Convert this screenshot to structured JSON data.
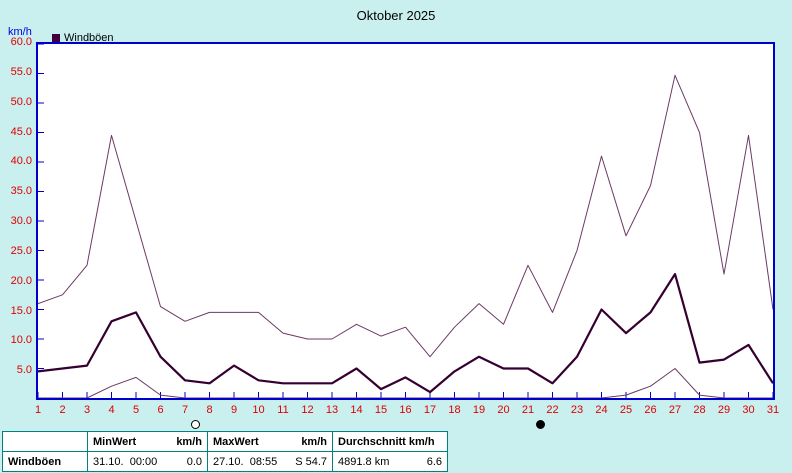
{
  "header": {
    "title": "Oktober 2025",
    "axis_unit_label": "km/h"
  },
  "legend": {
    "label": "Windböen",
    "swatch_color": "#400040"
  },
  "colors": {
    "page_background": "#c9efef",
    "plot_background": "#ffffff",
    "plot_border": "#0000cc",
    "tick_label_color": "#e00000",
    "table_border": "#008080",
    "series_max": "#6b3a64",
    "series_avg": "#350030"
  },
  "chart_data": {
    "type": "line",
    "title": "Oktober 2025",
    "ylabel": "km/h",
    "xlabel": "",
    "xlim": [
      1,
      31
    ],
    "ylim": [
      0,
      60
    ],
    "grid": false,
    "legend_position": "top-left",
    "axis_color": "#0000cc",
    "tick_label_color": "#e00000",
    "x_labels": [
      "1",
      "2",
      "3",
      "4",
      "5",
      "6",
      "7",
      "8",
      "9",
      "10",
      "11",
      "12",
      "13",
      "14",
      "15",
      "16",
      "17",
      "18",
      "19",
      "20",
      "21",
      "22",
      "23",
      "24",
      "25",
      "26",
      "27",
      "28",
      "29",
      "30",
      "31"
    ],
    "y_tick_labels": [
      "60.0",
      "55.0",
      "50.0",
      "45.0",
      "40.0",
      "35.0",
      "30.0",
      "25.0",
      "20.0",
      "15.0",
      "10.0",
      "5.0"
    ],
    "series": [
      {
        "name": "windboeen-max",
        "color": "#6b3a64",
        "width": 1,
        "values": [
          16,
          17.5,
          22.5,
          44.5,
          30,
          15.5,
          13,
          14.5,
          14.5,
          14.5,
          11,
          10,
          10,
          12.5,
          10.5,
          12,
          7,
          12,
          16,
          12.5,
          22.5,
          14.5,
          25,
          41,
          27.5,
          36,
          54.7,
          45,
          21,
          44.5,
          15
        ]
      },
      {
        "name": "windboeen-durchschnitt",
        "color": "#350030",
        "width": 2.2,
        "values": [
          4.5,
          5,
          5.5,
          13,
          14.5,
          7,
          3,
          2.5,
          5.5,
          3,
          2.5,
          2.5,
          2.5,
          5,
          1.5,
          3.5,
          1,
          4.5,
          7,
          5,
          5,
          2.5,
          7,
          15,
          11,
          14.5,
          21,
          6,
          6.5,
          9,
          2.5
        ]
      },
      {
        "name": "windboeen-min",
        "color": "#6b3a64",
        "width": 1,
        "values": [
          0,
          0,
          0,
          2,
          3.5,
          0.5,
          0,
          0,
          0,
          0,
          0,
          0,
          0,
          0,
          0,
          0,
          0,
          0,
          0,
          0,
          0,
          0,
          0,
          0,
          0.5,
          2,
          5,
          0.5,
          0,
          0,
          0
        ]
      }
    ],
    "moon_markers": [
      {
        "day": 7.4,
        "type": "open"
      },
      {
        "day": 21.5,
        "type": "filled"
      }
    ]
  },
  "table": {
    "row_label": "Windböen",
    "columns": [
      {
        "header": "MinWert",
        "header_unit": "km/h",
        "value": "31.10.  00:00",
        "value_right": "0.0"
      },
      {
        "header": "MaxWert",
        "header_unit": "km/h",
        "value": "27.10.  08:55",
        "value_right": "S 54.7"
      },
      {
        "header": "Durchschnitt km/h",
        "header_unit": "",
        "value": "4891.8 km",
        "value_right": "6.6"
      }
    ]
  }
}
